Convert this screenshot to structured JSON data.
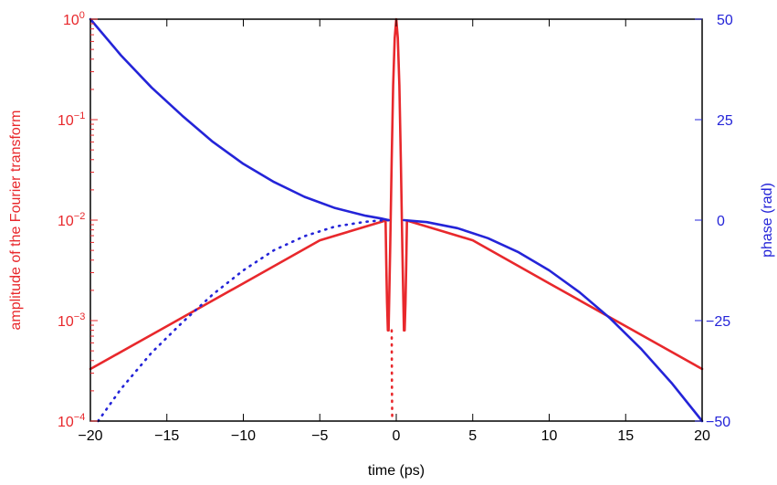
{
  "chart_data": {
    "type": "line",
    "xlabel": "time (ps)",
    "ylabel_left": "amplitude of the Fourier transform",
    "ylabel_right": "phase (rad)",
    "xlim": [
      -20,
      20
    ],
    "ylim_left": [
      0.0001,
      1
    ],
    "yscale_left": "log",
    "ylim_right": [
      -50,
      50
    ],
    "xticks": [
      "−20",
      "−15",
      "−10",
      "−5",
      "0",
      "5",
      "10",
      "15",
      "20"
    ],
    "yticks_left": [
      {
        "base": "10",
        "exp": "0"
      },
      {
        "base": "10",
        "exp": "−1"
      },
      {
        "base": "10",
        "exp": "−2"
      },
      {
        "base": "10",
        "exp": "−3"
      },
      {
        "base": "10",
        "exp": "−4"
      }
    ],
    "yticks_right": [
      "50",
      "25",
      "0",
      "−25",
      "−50"
    ],
    "grid": false,
    "colors": {
      "amplitude": "#e8282c",
      "phase": "#2424d8",
      "axes": "#000000"
    },
    "series": [
      {
        "axis": "left",
        "color": "#e8282c",
        "style": "solid",
        "x": [
          -20,
          -15,
          -10,
          -5,
          -0.7,
          -0.65,
          -0.6,
          -0.55
        ],
        "y": [
          0.00033,
          0.00088,
          0.00235,
          0.0063,
          0.0099,
          0.0035,
          0.0015,
          0.0008
        ]
      },
      {
        "axis": "left",
        "color": "#e8282c",
        "style": "solid",
        "x": [
          -0.5,
          -0.4,
          -0.3,
          -0.2,
          -0.1,
          0,
          0.1,
          0.2,
          0.3,
          0.4,
          0.5
        ],
        "y": [
          0.0008,
          0.005,
          0.04,
          0.22,
          0.65,
          1.0,
          0.65,
          0.22,
          0.04,
          0.005,
          0.0008
        ]
      },
      {
        "axis": "left",
        "color": "#e8282c",
        "style": "solid",
        "x": [
          0.55,
          0.6,
          0.65,
          0.7,
          5,
          10,
          15,
          20
        ],
        "y": [
          0.0008,
          0.0015,
          0.0035,
          0.0099,
          0.0063,
          0.00235,
          0.00088,
          0.00033
        ]
      },
      {
        "axis": "left",
        "color": "#e8282c",
        "style": "dotted",
        "x": [
          -0.3,
          -0.28,
          -0.26
        ],
        "y": [
          0.0008,
          0.0002,
          0.0001
        ]
      },
      {
        "axis": "right",
        "color": "#2424d8",
        "style": "solid",
        "x": [
          -20,
          -18,
          -16,
          -14,
          -12,
          -10,
          -8,
          -6,
          -4,
          -2,
          -1,
          -0.5
        ],
        "y": [
          50,
          41,
          33,
          26,
          19.5,
          14,
          9.5,
          5.8,
          3.0,
          1.1,
          0.4,
          0
        ]
      },
      {
        "axis": "right",
        "color": "#2424d8",
        "style": "solid",
        "x": [
          0.5,
          2,
          4,
          6,
          8,
          10,
          12,
          14,
          16,
          18,
          20
        ],
        "y": [
          0,
          -0.5,
          -2.0,
          -4.5,
          -8.0,
          -12.5,
          -18.0,
          -24.5,
          -32.0,
          -40.5,
          -50
        ]
      },
      {
        "axis": "right",
        "color": "#2424d8",
        "style": "dotted",
        "x": [
          -19.5,
          -18,
          -16,
          -14,
          -12,
          -10,
          -8,
          -6,
          -4,
          -2,
          -1,
          -0.3
        ],
        "y": [
          -50,
          -42,
          -33,
          -25.5,
          -18.5,
          -12.5,
          -7.5,
          -4.0,
          -1.6,
          -0.4,
          -0.1,
          0
        ]
      }
    ]
  }
}
